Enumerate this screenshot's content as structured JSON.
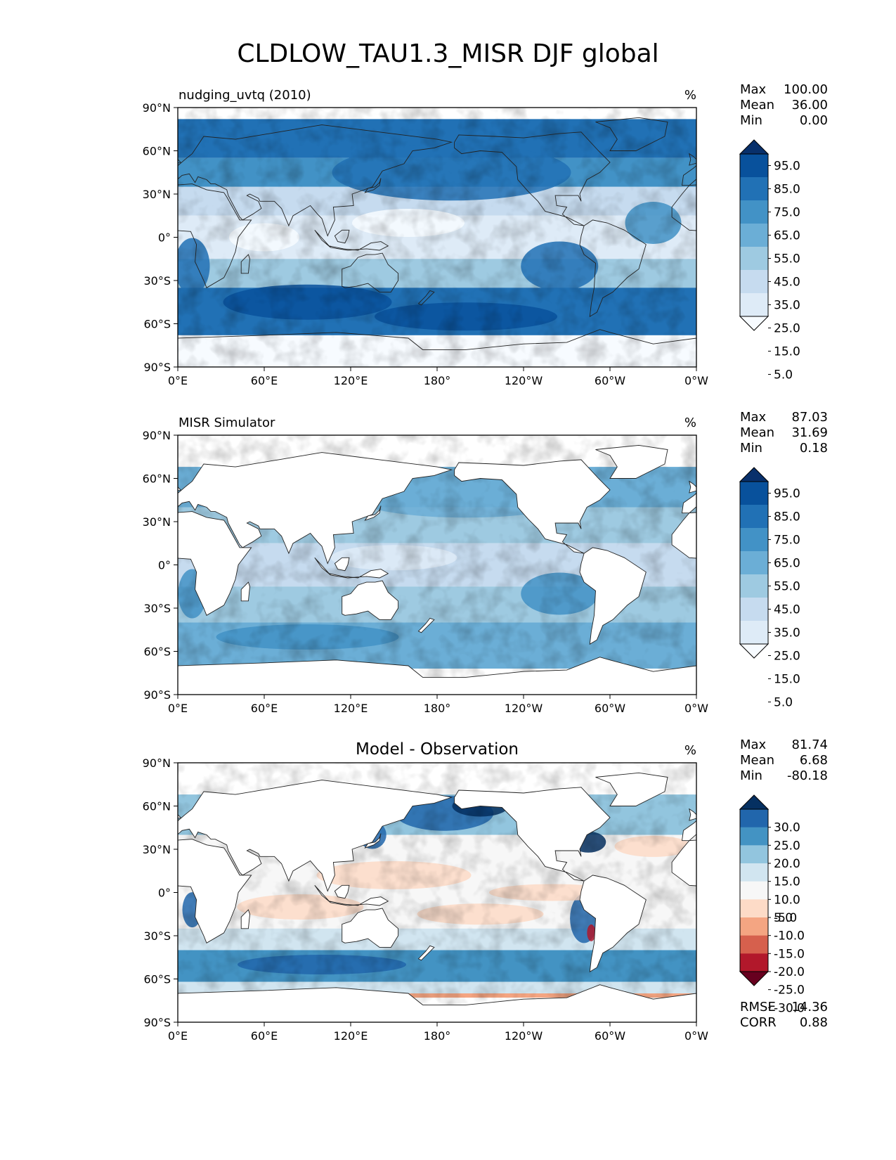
{
  "title": "CLDLOW_TAU1.3_MISR DJF global",
  "x_ticks": [
    "0°E",
    "60°E",
    "120°E",
    "180°",
    "120°W",
    "60°W",
    "0°W"
  ],
  "y_ticks": [
    "90°N",
    "60°N",
    "30°N",
    "0°",
    "30°S",
    "60°S",
    "90°S"
  ],
  "colors": {
    "blues": [
      "#f7fbff",
      "#deebf7",
      "#c6dbef",
      "#9ecae1",
      "#6baed6",
      "#4292c6",
      "#2171b5",
      "#08519c",
      "#08306b"
    ],
    "diverging": [
      "#67001f",
      "#b2182b",
      "#d6604d",
      "#f4a582",
      "#fddbc7",
      "#f7f7f7",
      "#d1e5f0",
      "#92c5de",
      "#4393c3",
      "#2166ac",
      "#053061"
    ]
  },
  "chart_data": [
    {
      "type": "heatmap",
      "subtitle": "nudging_uvtq (2010)",
      "units": "%",
      "stats": {
        "max_label": "Max",
        "max": "100.00",
        "mean_label": "Mean",
        "mean": "36.00",
        "min_label": "Min",
        "min": "0.00"
      },
      "colorbar_levels": [
        "95.0",
        "85.0",
        "75.0",
        "65.0",
        "55.0",
        "45.0",
        "35.0",
        "25.0",
        "15.0",
        "5.0"
      ],
      "colormap": "Blues",
      "xlim": [
        0,
        360
      ],
      "ylim": [
        -90,
        90
      ]
    },
    {
      "type": "heatmap",
      "subtitle": "MISR Simulator",
      "units": "%",
      "stats": {
        "max_label": "Max",
        "max": "87.03",
        "mean_label": "Mean",
        "mean": "31.69",
        "min_label": "Min",
        "min": "0.18"
      },
      "colorbar_levels": [
        "95.0",
        "85.0",
        "75.0",
        "65.0",
        "55.0",
        "45.0",
        "35.0",
        "25.0",
        "15.0",
        "5.0"
      ],
      "colormap": "Blues",
      "xlim": [
        0,
        360
      ],
      "ylim": [
        -90,
        90
      ]
    },
    {
      "type": "heatmap",
      "subtitle": "Model - Observation",
      "units": "%",
      "stats": {
        "max_label": "Max",
        "max": "81.74",
        "mean_label": "Mean",
        "mean": "6.68",
        "min_label": "Min",
        "min": "-80.18"
      },
      "colorbar_levels": [
        "30.0",
        "25.0",
        "20.0",
        "15.0",
        "10.0",
        "5.0",
        "-5.0",
        "-10.0",
        "-15.0",
        "-20.0",
        "-25.0",
        "-30.0"
      ],
      "colormap": "RdBu",
      "rmse_label": "RMSE",
      "rmse": "14.36",
      "corr_label": "CORR",
      "corr": "0.88",
      "xlim": [
        0,
        360
      ],
      "ylim": [
        -90,
        90
      ]
    }
  ]
}
